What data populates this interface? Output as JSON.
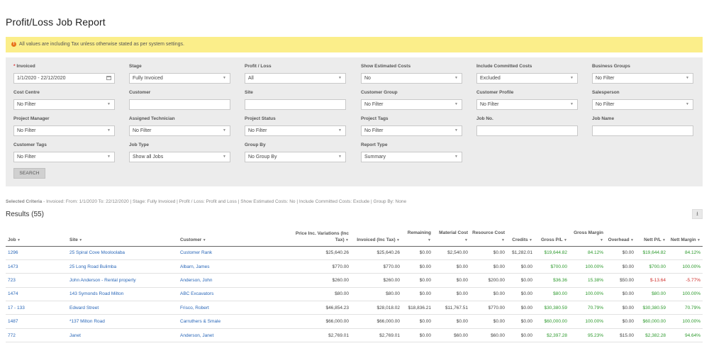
{
  "title": "Profit/Loss Job Report",
  "alert": "All values are including Tax unless otherwise stated as per system settings.",
  "filters": [
    {
      "id": "invoiced",
      "label": "Invoiced",
      "required": true,
      "value": "1/1/2020 - 22/12/2020",
      "kind": "date"
    },
    {
      "id": "stage",
      "label": "Stage",
      "value": "Fully Invoiced",
      "kind": "select"
    },
    {
      "id": "profit-loss",
      "label": "Profit / Loss",
      "value": "All",
      "kind": "select"
    },
    {
      "id": "show-estimated-costs",
      "label": "Show Estimated Costs",
      "value": "No",
      "kind": "select"
    },
    {
      "id": "include-committed-costs",
      "label": "Include Committed Costs",
      "value": "Excluded",
      "kind": "select"
    },
    {
      "id": "business-groups",
      "label": "Business Groups",
      "value": "No Filter",
      "kind": "select"
    },
    {
      "id": "cost-centre",
      "label": "Cost Centre",
      "value": "No Filter",
      "kind": "select"
    },
    {
      "id": "customer",
      "label": "Customer",
      "value": "",
      "kind": "text"
    },
    {
      "id": "site",
      "label": "Site",
      "value": "",
      "kind": "text"
    },
    {
      "id": "customer-group",
      "label": "Customer Group",
      "value": "No Filter",
      "kind": "select"
    },
    {
      "id": "customer-profile",
      "label": "Customer Profile",
      "value": "No Filter",
      "kind": "select"
    },
    {
      "id": "salesperson",
      "label": "Salesperson",
      "value": "No Filter",
      "kind": "select"
    },
    {
      "id": "project-manager",
      "label": "Project Manager",
      "value": "No Filter",
      "kind": "select"
    },
    {
      "id": "assigned-technician",
      "label": "Assigned Technician",
      "value": "No Filter",
      "kind": "select"
    },
    {
      "id": "project-status",
      "label": "Project Status",
      "value": "No Filter",
      "kind": "select"
    },
    {
      "id": "project-tags",
      "label": "Project Tags",
      "value": "No Filter",
      "kind": "select"
    },
    {
      "id": "job-no",
      "label": "Job No.",
      "value": "",
      "kind": "text"
    },
    {
      "id": "job-name",
      "label": "Job Name",
      "value": "",
      "kind": "text"
    },
    {
      "id": "customer-tags",
      "label": "Customer Tags",
      "value": "No Filter",
      "kind": "select"
    },
    {
      "id": "job-type",
      "label": "Job Type",
      "value": "Show all Jobs",
      "kind": "select"
    },
    {
      "id": "group-by",
      "label": "Group By",
      "value": "No Group By",
      "kind": "select"
    },
    {
      "id": "report-type",
      "label": "Report Type",
      "value": "Summary",
      "kind": "select"
    }
  ],
  "search_label": "SEARCH",
  "criteria_label": "Selected Criteria",
  "criteria_text": " - Invoiced: From: 1/1/2020 To: 22/12/2020 | Stage: Fully Invoiced | Profit / Loss: Profit and Loss | Show Estimated Costs: No | Include Committed Costs: Exclude | Group By: None",
  "results_label": "Results (55)",
  "columns": [
    {
      "label": "Job",
      "align": "l"
    },
    {
      "label": "Site",
      "align": "l"
    },
    {
      "label": "Customer",
      "align": "l"
    },
    {
      "label": "Price Inc. Variations (Inc Tax)",
      "align": "r"
    },
    {
      "label": "Invoiced (Inc Tax)",
      "align": "r"
    },
    {
      "label": "Remaining",
      "align": "r"
    },
    {
      "label": "Material Cost",
      "align": "r"
    },
    {
      "label": "Resource Cost",
      "align": "r"
    },
    {
      "label": "Credits",
      "align": "r"
    },
    {
      "label": "Gross P/L",
      "align": "r"
    },
    {
      "label": "Gross Margin",
      "align": "r"
    },
    {
      "label": "Overhead",
      "align": "r"
    },
    {
      "label": "Nett P/L",
      "align": "r"
    },
    {
      "label": "Nett Margin",
      "align": "r"
    }
  ],
  "rows": [
    {
      "job": "1296",
      "site": "25 Spiral Cove Mooloolaba",
      "customer": "Customer Rank",
      "price": "$25,640.26",
      "invoiced": "$25,640.26",
      "remaining": "$0.00",
      "material": "$2,540.00",
      "resource": "$0.00",
      "credits": "$1,282.01",
      "gross_pl": "$19,644.82",
      "gross_margin": "84.12%",
      "overhead": "$0.00",
      "nett_pl": "$19,644.82",
      "nett_margin": "84.12%",
      "status": "positive"
    },
    {
      "job": "1473",
      "site": "25 Long Road Bulimba",
      "customer": "Albarn, James",
      "price": "$770.00",
      "invoiced": "$770.00",
      "remaining": "$0.00",
      "material": "$0.00",
      "resource": "$0.00",
      "credits": "$0.00",
      "gross_pl": "$700.00",
      "gross_margin": "100.00%",
      "overhead": "$0.00",
      "nett_pl": "$700.00",
      "nett_margin": "100.00%",
      "status": "positive"
    },
    {
      "job": "723",
      "site": "John Anderson - Rental property",
      "customer": "Anderson, John",
      "price": "$260.00",
      "invoiced": "$260.00",
      "remaining": "$0.00",
      "material": "$0.00",
      "resource": "$200.00",
      "credits": "$0.00",
      "gross_pl": "$36.36",
      "gross_margin": "15.38%",
      "overhead": "$50.00",
      "nett_pl": "$-13.64",
      "nett_margin": "-5.77%",
      "status": "negative"
    },
    {
      "job": "1474",
      "site": "143 Symonds Road Milton",
      "customer": "ABC Excavators",
      "price": "$80.00",
      "invoiced": "$80.00",
      "remaining": "$0.00",
      "material": "$0.00",
      "resource": "$0.00",
      "credits": "$0.00",
      "gross_pl": "$80.00",
      "gross_margin": "100.00%",
      "overhead": "$0.00",
      "nett_pl": "$80.00",
      "nett_margin": "100.00%",
      "status": "positive"
    },
    {
      "job": "17 - 133",
      "site": "Edward Street",
      "customer": "Frisco, Robert",
      "price": "$46,854.23",
      "invoiced": "$28,018.02",
      "remaining": "$18,836.21",
      "material": "$11,767.51",
      "resource": "$770.00",
      "credits": "$0.00",
      "gross_pl": "$30,380.59",
      "gross_margin": "70.79%",
      "overhead": "$0.00",
      "nett_pl": "$30,380.59",
      "nett_margin": "70.79%",
      "status": "positive"
    },
    {
      "job": "1487",
      "site": "*137 Milton Road",
      "customer": "Carruthers & Smale",
      "price": "$66,000.00",
      "invoiced": "$66,000.00",
      "remaining": "$0.00",
      "material": "$0.00",
      "resource": "$0.00",
      "credits": "$0.00",
      "gross_pl": "$60,000.00",
      "gross_margin": "100.00%",
      "overhead": "$0.00",
      "nett_pl": "$60,000.00",
      "nett_margin": "100.00%",
      "status": "positive"
    },
    {
      "job": "772",
      "site": "Janet",
      "customer": "Anderson, Janet",
      "price": "$2,769.01",
      "invoiced": "$2,769.01",
      "remaining": "$0.00",
      "material": "$60.00",
      "resource": "$60.00",
      "credits": "$0.00",
      "gross_pl": "$2,397.28",
      "gross_margin": "95.23%",
      "overhead": "$15.00",
      "nett_pl": "$2,382.28",
      "nett_margin": "94.64%",
      "status": "positive"
    }
  ],
  "colors": {
    "alert_bg": "#fbee8a",
    "link": "#2a67b8",
    "positive": "#2e9a2e",
    "negative": "#d0312d",
    "filter_panel": "#ececec"
  },
  "icons": {
    "alert": "warning-icon",
    "date": "calendar-icon",
    "select": "chevron-down-icon",
    "export": "download-icon",
    "sort": "sort-down-icon"
  }
}
